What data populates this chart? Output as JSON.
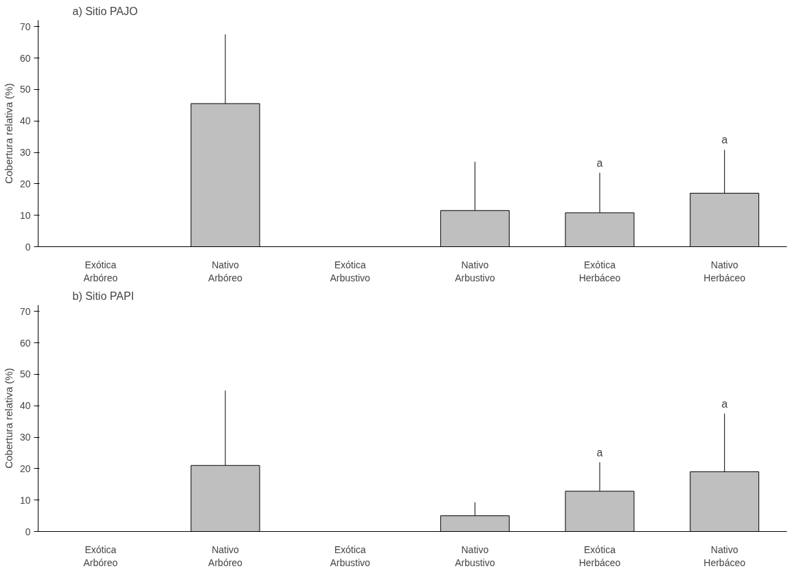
{
  "chart_data": [
    {
      "type": "bar",
      "title": "a) Sitio PAJO",
      "ylabel": "Cobertura relativa (%)",
      "categories": [
        "Exótica\nArbóreo",
        "Nativo\nArbóreo",
        "Exótica\nArbustivo",
        "Nativo\nArbustivo",
        "Exótica\nHerbáceo",
        "Nativo\nHerbáceo"
      ],
      "values": [
        0,
        45.5,
        0,
        11.5,
        10.8,
        17
      ],
      "errors": [
        null,
        [
          45.5,
          67.5
        ],
        null,
        [
          11.5,
          27
        ],
        [
          10.8,
          23.5
        ],
        [
          17,
          30.8
        ]
      ],
      "color": "#bfbfbf",
      "ylim": [
        0,
        72
      ],
      "yticks": [
        0,
        10,
        20,
        30,
        40,
        50,
        60,
        70
      ],
      "grid": false,
      "annotations": [
        "a",
        "a"
      ]
    },
    {
      "type": "bar",
      "title": "b) Sitio PAPI",
      "ylabel": "Cobertura relativa (%)",
      "categories": [
        "Exótica\nArbóreo",
        "Nativo\nArbóreo",
        "Exótica\nArbustivo",
        "Nativo\nArbustivo",
        "Exótica\nHerbáceo",
        "Nativo\nHerbáceo"
      ],
      "values": [
        0,
        21,
        0,
        5,
        12.8,
        19
      ],
      "errors": [
        null,
        [
          21,
          44.8
        ],
        null,
        [
          5,
          9.3
        ],
        [
          12.8,
          22
        ],
        [
          19,
          37.5
        ]
      ],
      "color": "#bfbfbf",
      "ylim": [
        0,
        72
      ],
      "yticks": [
        0,
        10,
        20,
        30,
        40,
        50,
        60,
        70
      ],
      "grid": false,
      "annotations": [
        "a",
        "a"
      ]
    }
  ]
}
